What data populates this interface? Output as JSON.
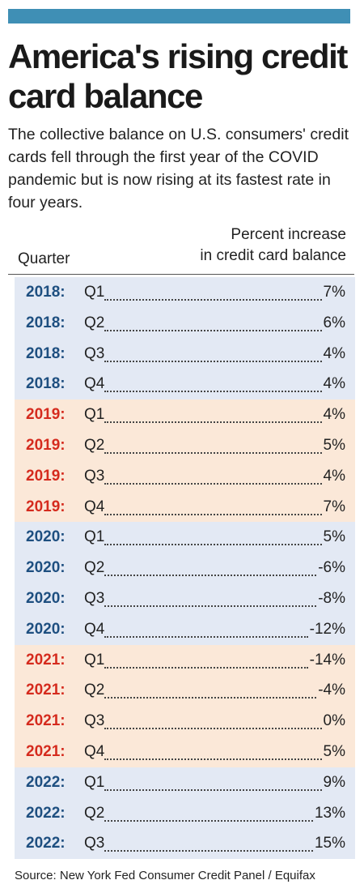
{
  "chart_data": {
    "type": "table",
    "title": "America's rising credit card balance",
    "subtitle": "The collective balance on U.S. consumers' credit cards fell through the first year of the COVID pandemic but is now rising at its fastest rate in four years.",
    "columns": [
      "Quarter",
      "Percent increase in credit card balance"
    ],
    "column_header_quarter": "Quarter",
    "column_header_pct_line1": "Percent increase",
    "column_header_pct_line2": "in credit card balance",
    "rows": [
      {
        "year": "2018:",
        "quarter": "Q1",
        "value": 7,
        "label": "7%"
      },
      {
        "year": "2018:",
        "quarter": "Q2",
        "value": 6,
        "label": "6%"
      },
      {
        "year": "2018:",
        "quarter": "Q3",
        "value": 4,
        "label": "4%"
      },
      {
        "year": "2018:",
        "quarter": "Q4",
        "value": 4,
        "label": "4%"
      },
      {
        "year": "2019:",
        "quarter": "Q1",
        "value": 4,
        "label": "4%"
      },
      {
        "year": "2019:",
        "quarter": "Q2",
        "value": 5,
        "label": "5%"
      },
      {
        "year": "2019:",
        "quarter": "Q3",
        "value": 4,
        "label": "4%"
      },
      {
        "year": "2019:",
        "quarter": "Q4",
        "value": 7,
        "label": "7%"
      },
      {
        "year": "2020:",
        "quarter": "Q1",
        "value": 5,
        "label": "5%"
      },
      {
        "year": "2020:",
        "quarter": "Q2",
        "value": -6,
        "label": "-6%"
      },
      {
        "year": "2020:",
        "quarter": "Q3",
        "value": -8,
        "label": "-8%"
      },
      {
        "year": "2020:",
        "quarter": "Q4",
        "value": -12,
        "label": "-12%"
      },
      {
        "year": "2021:",
        "quarter": "Q1",
        "value": -14,
        "label": "-14%"
      },
      {
        "year": "2021:",
        "quarter": "Q2",
        "value": -4,
        "label": "-4%"
      },
      {
        "year": "2021:",
        "quarter": "Q3",
        "value": 0,
        "label": "0%"
      },
      {
        "year": "2021:",
        "quarter": "Q4",
        "value": 5,
        "label": "5%"
      },
      {
        "year": "2022:",
        "quarter": "Q1",
        "value": 9,
        "label": "9%"
      },
      {
        "year": "2022:",
        "quarter": "Q2",
        "value": 13,
        "label": "13%"
      },
      {
        "year": "2022:",
        "quarter": "Q3",
        "value": 15,
        "label": "15%"
      }
    ],
    "source": "Source: New York Fed Consumer Credit Panel / Equifax"
  },
  "colors": {
    "top_bar": "#3f8fb5",
    "year_blue": "#1e4f80",
    "year_red": "#d52b1e",
    "row_blue_bg": "#e3e9f4",
    "row_orange_bg": "#fbe8d8"
  }
}
